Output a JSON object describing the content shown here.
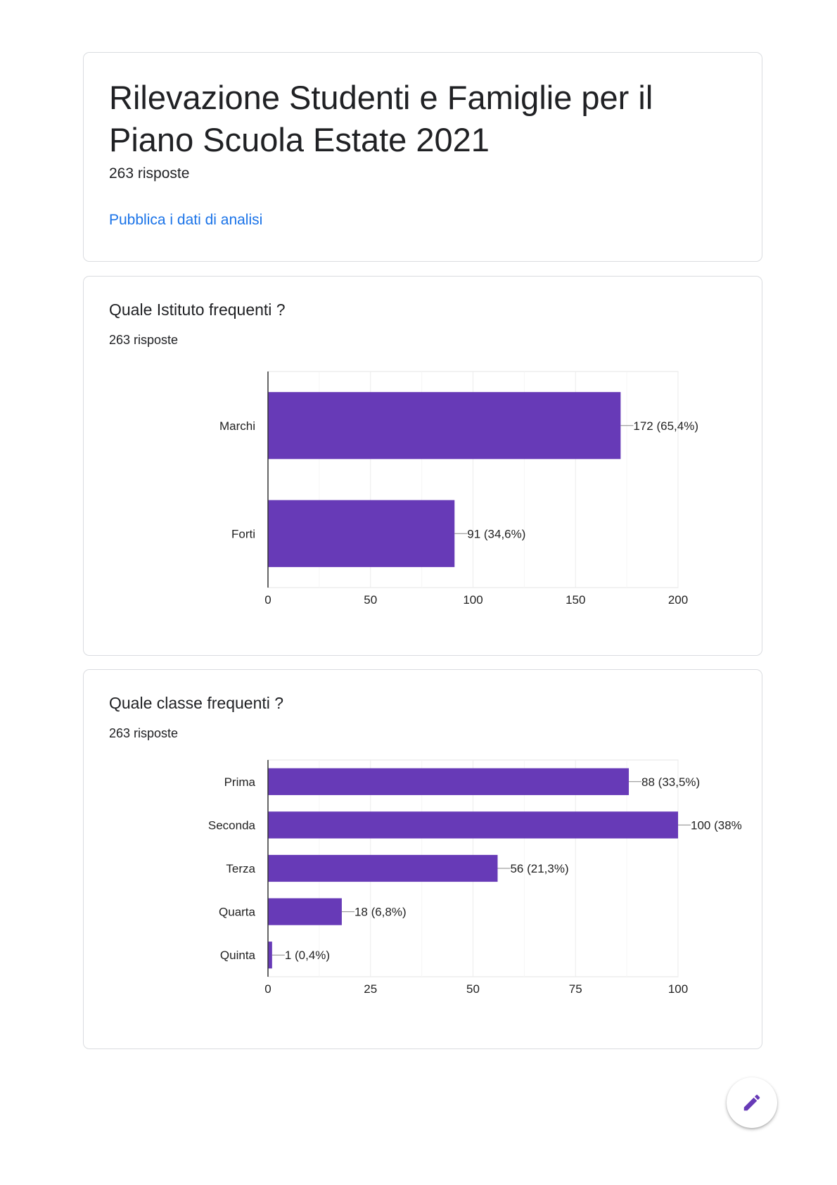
{
  "header": {
    "title": "Rilevazione Studenti e Famiglie per il Piano Scuola Estate 2021",
    "responses": "263 risposte",
    "publish_link": "Pubblica i dati di analisi"
  },
  "questions": [
    {
      "title": "Quale Istituto frequenti ?",
      "responses": "263 risposte"
    },
    {
      "title": "Quale classe frequenti ?",
      "responses": "263 risposte"
    }
  ],
  "chart_data": [
    {
      "type": "bar",
      "orientation": "horizontal",
      "categories": [
        "Marchi",
        "Forti"
      ],
      "values": [
        172,
        91
      ],
      "labels": [
        "172 (65,4%)",
        "91 (34,6%)"
      ],
      "xlim": [
        0,
        200
      ],
      "xticks": [
        "0",
        "50",
        "100",
        "150",
        "200"
      ],
      "grid": true,
      "color": "#673ab7"
    },
    {
      "type": "bar",
      "orientation": "horizontal",
      "categories": [
        "Prima",
        "Seconda",
        "Terza",
        "Quarta",
        "Quinta"
      ],
      "values": [
        88,
        100,
        56,
        18,
        1
      ],
      "labels": [
        "88 (33,5%)",
        "100 (38%",
        "56 (21,3%)",
        "18 (6,8%)",
        "1 (0,4%)"
      ],
      "xlim": [
        0,
        100
      ],
      "xticks": [
        "0",
        "25",
        "50",
        "75",
        "100"
      ],
      "grid": true,
      "color": "#673ab7"
    }
  ],
  "fab": {
    "icon": "pencil-icon",
    "color": "#673ab7"
  }
}
